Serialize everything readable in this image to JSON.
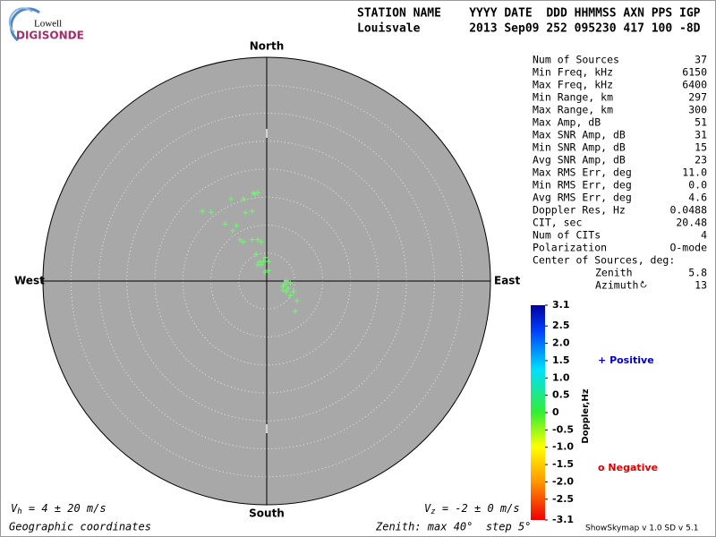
{
  "header": {
    "logo_top": "Lowell",
    "logo_bottom": "DIGISONDE",
    "labels": "STATION NAME    YYYY DATE  DDD HHMMSS AXN PPS IGP",
    "values": "Louisvale       2013 Sep09 252 095230 417 100 -8D"
  },
  "stats": [
    {
      "label": "Num of Sources",
      "value": "37"
    },
    {
      "label": "Min Freq, kHz",
      "value": "6150"
    },
    {
      "label": "Max Freq, kHz",
      "value": "6400"
    },
    {
      "label": "Min Range, km",
      "value": "297"
    },
    {
      "label": "Max Range, km",
      "value": "300"
    },
    {
      "label": "Max Amp, dB",
      "value": "51"
    },
    {
      "label": "Max SNR Amp, dB",
      "value": "31"
    },
    {
      "label": "Min SNR Amp, dB",
      "value": "15"
    },
    {
      "label": "Avg SNR Amp, dB",
      "value": "23"
    },
    {
      "label": "Max RMS Err, deg",
      "value": "11.0"
    },
    {
      "label": "Min RMS Err, deg",
      "value": "0.0"
    },
    {
      "label": "Avg RMS Err, deg",
      "value": "4.6"
    },
    {
      "label": "Doppler Res, Hz",
      "value": "0.0488"
    },
    {
      "label": "CIT, sec",
      "value": "20.48"
    },
    {
      "label": "Num of CITs",
      "value": "4"
    },
    {
      "label": "Polarization",
      "value": "O-mode"
    }
  ],
  "center": {
    "title": "Center of Sources, deg:",
    "zenith_label": "Zenith",
    "zenith": "5.8",
    "azimuth_label": "Azimuth",
    "azimuth": "13"
  },
  "chart_data": {
    "type": "skymap",
    "directions": {
      "north": "North",
      "south": "South",
      "west": "West",
      "east": "East"
    },
    "rlim": [
      0,
      40
    ],
    "ring_step": 5,
    "color": "#66ff66",
    "x": [
      -1.6,
      -2.1,
      -2.4,
      -6.4,
      -4.2,
      -11.5,
      -9.9,
      -3.8,
      -2.6,
      -7.4,
      -5.4,
      -6.1,
      -4.8,
      -4.2,
      -2.6,
      -1.6,
      -1.0,
      -1.9,
      -0.3,
      -1.3,
      -1.6,
      -1.0,
      -0.6,
      0.3,
      -0.3,
      3.5,
      3.2,
      4.2,
      2.9,
      3.8,
      2.9,
      3.5,
      4.8,
      4.2,
      5.4,
      5.1,
      0.3
    ],
    "y": [
      15.8,
      15.5,
      15.7,
      14.7,
      14.7,
      12.5,
      12.3,
      12.2,
      12.5,
      10.2,
      9.9,
      9.0,
      7.4,
      7.0,
      7.4,
      7.4,
      7.0,
      4.8,
      4.2,
      3.4,
      2.9,
      2.9,
      3.5,
      1.9,
      1.6,
      0,
      -0.6,
      -0.3,
      -1.0,
      -1.3,
      -1.6,
      -1.9,
      -1.9,
      -2.6,
      -3.5,
      -5.4,
      3.5
    ],
    "legend": [
      {
        "marker": "+",
        "name": "Positive",
        "color": "#0000cc"
      },
      {
        "marker": "o",
        "name": "Negative",
        "color": "#dd0000"
      }
    ],
    "colorbar": {
      "label": "Doppler,Hz",
      "lim": [
        -3.1,
        3.1
      ],
      "ticks": [
        3.1,
        2.5,
        {
          "value": 2,
          "label": "2.0"
        },
        1.5,
        {
          "value": 1,
          "label": "1.0"
        },
        0.5,
        0,
        -0.5,
        {
          "value": -1,
          "label": "-1.0"
        },
        -1.5,
        {
          "value": -2,
          "label": "-2.0"
        },
        -2.5,
        -3.1
      ]
    },
    "vh": {
      "symbol": "V",
      "subscript": "h",
      "text": " = 4 ± 20 m/s"
    },
    "vz": {
      "symbol": "V",
      "subscript": "z",
      "text": " = -2 ± 0 m/s"
    },
    "coordinates": "Geographic coordinates",
    "zenith_note": "Zenith: max 40°  step 5°",
    "version": "ShowSkymap v 1.0  SD v 5.1"
  }
}
